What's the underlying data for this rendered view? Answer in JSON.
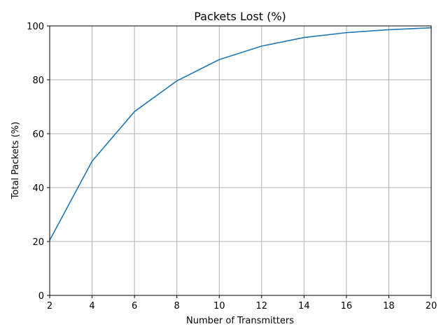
{
  "chart_data": {
    "type": "line",
    "title": "Packets Lost (%)",
    "xlabel": "Number of Transmitters",
    "ylabel": "Total Packets (%)",
    "xlim": [
      2,
      20
    ],
    "ylim": [
      0,
      100
    ],
    "xticks": [
      2,
      4,
      6,
      8,
      10,
      12,
      14,
      16,
      18,
      20
    ],
    "yticks": [
      0,
      20,
      40,
      60,
      80,
      100
    ],
    "grid": true,
    "series": [
      {
        "color": "#1f77b4",
        "x": [
          2,
          4,
          6,
          8,
          10,
          12,
          14,
          16,
          18,
          20
        ],
        "y": [
          20.5,
          49.8,
          68.2,
          79.6,
          87.5,
          92.5,
          95.7,
          97.5,
          98.6,
          99.3
        ]
      }
    ],
    "colors": {
      "line": "#1f77b4",
      "grid": "#b0b0b0",
      "axis": "#000000"
    }
  }
}
